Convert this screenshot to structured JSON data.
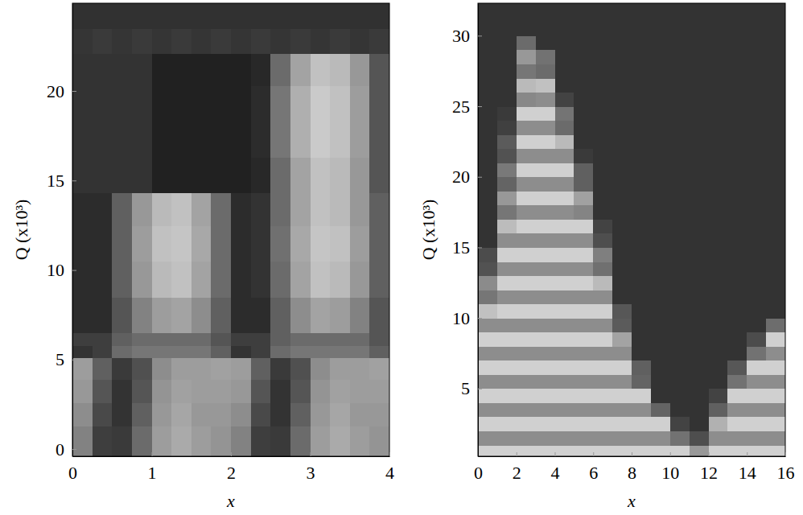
{
  "chart_data": [
    {
      "type": "heatmap",
      "x_label": "x",
      "y_label": "Q (x10³)",
      "xlim": [
        0,
        4
      ],
      "ylim": [
        -0.4,
        24.9
      ],
      "xticks": [
        0,
        1,
        2,
        3,
        4
      ],
      "yticks": [
        0,
        5,
        10,
        15,
        20
      ],
      "zlim": [
        0,
        1
      ],
      "x_edges": [
        0,
        0.25,
        0.5,
        0.75,
        1,
        1.25,
        1.5,
        1.75,
        2,
        2.25,
        2.5,
        2.75,
        3,
        3.25,
        3.5,
        3.75,
        4
      ],
      "y_edges": [
        -0.4,
        1.3,
        2.6,
        3.9,
        5.1,
        5.8,
        6.5,
        8.5,
        10.5,
        12.5,
        14.3,
        16.3,
        18.3,
        20.3,
        22.1,
        23.5,
        24.9
      ],
      "cells": [
        [
          0.5,
          0.2,
          0.18,
          0.4,
          0.62,
          0.68,
          0.62,
          0.58,
          0.5,
          0.2,
          0.18,
          0.4,
          0.62,
          0.68,
          0.62,
          0.58
        ],
        [
          0.55,
          0.25,
          0.15,
          0.35,
          0.6,
          0.66,
          0.6,
          0.6,
          0.55,
          0.25,
          0.15,
          0.35,
          0.6,
          0.66,
          0.6,
          0.6
        ],
        [
          0.6,
          0.3,
          0.15,
          0.3,
          0.58,
          0.64,
          0.62,
          0.62,
          0.6,
          0.3,
          0.15,
          0.3,
          0.58,
          0.64,
          0.62,
          0.62
        ],
        [
          0.62,
          0.35,
          0.18,
          0.28,
          0.55,
          0.62,
          0.62,
          0.64,
          0.62,
          0.35,
          0.18,
          0.28,
          0.55,
          0.62,
          0.62,
          0.64
        ],
        [
          0.15,
          0.2,
          0.4,
          0.45,
          0.45,
          0.45,
          0.45,
          0.35,
          0.15,
          0.2,
          0.4,
          0.45,
          0.45,
          0.45,
          0.45,
          0.35
        ],
        [
          0.2,
          0.2,
          0.35,
          0.4,
          0.4,
          0.4,
          0.4,
          0.3,
          0.2,
          0.2,
          0.35,
          0.4,
          0.4,
          0.4,
          0.4,
          0.3
        ],
        [
          0.12,
          0.12,
          0.3,
          0.5,
          0.62,
          0.65,
          0.55,
          0.35,
          0.12,
          0.12,
          0.35,
          0.55,
          0.65,
          0.62,
          0.5,
          0.3
        ],
        [
          0.12,
          0.12,
          0.35,
          0.6,
          0.75,
          0.78,
          0.65,
          0.4,
          0.12,
          0.15,
          0.4,
          0.65,
          0.78,
          0.75,
          0.6,
          0.35
        ],
        [
          0.12,
          0.12,
          0.35,
          0.62,
          0.78,
          0.8,
          0.67,
          0.4,
          0.12,
          0.15,
          0.42,
          0.67,
          0.8,
          0.78,
          0.62,
          0.35
        ],
        [
          0.12,
          0.12,
          0.35,
          0.6,
          0.75,
          0.78,
          0.65,
          0.4,
          0.12,
          0.15,
          0.4,
          0.65,
          0.78,
          0.75,
          0.6,
          0.35
        ],
        [
          0.15,
          0.15,
          0.15,
          0.15,
          0.07,
          0.07,
          0.07,
          0.07,
          0.07,
          0.1,
          0.4,
          0.65,
          0.78,
          0.75,
          0.6,
          0.3
        ],
        [
          0.15,
          0.15,
          0.15,
          0.15,
          0.07,
          0.07,
          0.07,
          0.07,
          0.07,
          0.12,
          0.45,
          0.7,
          0.82,
          0.78,
          0.62,
          0.3
        ],
        [
          0.15,
          0.15,
          0.15,
          0.15,
          0.07,
          0.07,
          0.07,
          0.07,
          0.07,
          0.12,
          0.45,
          0.7,
          0.82,
          0.78,
          0.62,
          0.3
        ],
        [
          0.15,
          0.15,
          0.15,
          0.15,
          0.07,
          0.07,
          0.07,
          0.07,
          0.07,
          0.1,
          0.4,
          0.65,
          0.78,
          0.75,
          0.6,
          0.3
        ],
        [
          0.16,
          0.18,
          0.16,
          0.18,
          0.16,
          0.18,
          0.16,
          0.18,
          0.16,
          0.18,
          0.16,
          0.18,
          0.16,
          0.18,
          0.16,
          0.18
        ],
        [
          0.14,
          0.14,
          0.14,
          0.14,
          0.14,
          0.14,
          0.14,
          0.14,
          0.14,
          0.14,
          0.14,
          0.14,
          0.14,
          0.14,
          0.14,
          0.14
        ]
      ]
    },
    {
      "type": "heatmap",
      "x_label": "x",
      "y_label": "Q (x10³)",
      "xlim": [
        0,
        16
      ],
      "ylim": [
        0.2,
        32.3
      ],
      "xticks": [
        0,
        2,
        4,
        6,
        8,
        10,
        12,
        14,
        16
      ],
      "yticks": [
        5,
        10,
        15,
        20,
        25,
        30
      ],
      "zlim": [
        0,
        1
      ],
      "x_edges": [
        0,
        1,
        2,
        3,
        4,
        5,
        6,
        7,
        8,
        9,
        10,
        11,
        12,
        13,
        14,
        15,
        16
      ],
      "y_edges": [
        0,
        1,
        2,
        3,
        4,
        5,
        6,
        7,
        8,
        9,
        10,
        11,
        12,
        13,
        14,
        15,
        16,
        17,
        18,
        19,
        20,
        21,
        22,
        23,
        24,
        25,
        26,
        27,
        28,
        29,
        30,
        31,
        32,
        33
      ],
      "cells": [
        [
          0.85,
          0.85,
          0.85,
          0.85,
          0.85,
          0.85,
          0.85,
          0.85,
          0.85,
          0.85,
          0.85,
          0.6,
          0.85,
          0.85,
          0.85,
          0.85
        ],
        [
          0.55,
          0.55,
          0.55,
          0.55,
          0.55,
          0.55,
          0.55,
          0.55,
          0.55,
          0.55,
          0.43,
          0.27,
          0.55,
          0.55,
          0.55,
          0.55
        ],
        [
          0.85,
          0.85,
          0.85,
          0.85,
          0.85,
          0.85,
          0.85,
          0.85,
          0.85,
          0.85,
          0.22,
          0.15,
          0.71,
          0.85,
          0.85,
          0.85
        ],
        [
          0.55,
          0.55,
          0.55,
          0.55,
          0.55,
          0.55,
          0.55,
          0.55,
          0.55,
          0.37,
          0.15,
          0.15,
          0.35,
          0.55,
          0.55,
          0.55
        ],
        [
          0.85,
          0.85,
          0.85,
          0.85,
          0.85,
          0.85,
          0.85,
          0.85,
          0.85,
          0.15,
          0.15,
          0.15,
          0.22,
          0.85,
          0.85,
          0.85
        ],
        [
          0.55,
          0.55,
          0.55,
          0.55,
          0.55,
          0.55,
          0.55,
          0.55,
          0.37,
          0.15,
          0.15,
          0.15,
          0.15,
          0.43,
          0.55,
          0.55
        ],
        [
          0.85,
          0.85,
          0.85,
          0.85,
          0.85,
          0.85,
          0.85,
          0.85,
          0.35,
          0.15,
          0.15,
          0.15,
          0.15,
          0.31,
          0.85,
          0.85
        ],
        [
          0.55,
          0.55,
          0.55,
          0.55,
          0.55,
          0.55,
          0.55,
          0.55,
          0.15,
          0.15,
          0.15,
          0.15,
          0.15,
          0.15,
          0.43,
          0.55
        ],
        [
          0.85,
          0.85,
          0.85,
          0.85,
          0.85,
          0.85,
          0.85,
          0.65,
          0.15,
          0.15,
          0.15,
          0.15,
          0.15,
          0.15,
          0.26,
          0.85
        ],
        [
          0.55,
          0.55,
          0.55,
          0.55,
          0.55,
          0.55,
          0.55,
          0.33,
          0.15,
          0.15,
          0.15,
          0.15,
          0.15,
          0.15,
          0.15,
          0.41
        ],
        [
          0.78,
          0.85,
          0.85,
          0.85,
          0.85,
          0.85,
          0.85,
          0.31,
          0.15,
          0.15,
          0.15,
          0.15,
          0.15,
          0.15,
          0.15,
          0.15
        ],
        [
          0.45,
          0.55,
          0.55,
          0.55,
          0.55,
          0.55,
          0.55,
          0.15,
          0.15,
          0.15,
          0.15,
          0.15,
          0.15,
          0.15,
          0.15,
          0.15
        ],
        [
          0.54,
          0.85,
          0.85,
          0.85,
          0.85,
          0.85,
          0.75,
          0.15,
          0.15,
          0.15,
          0.15,
          0.15,
          0.15,
          0.15,
          0.15,
          0.15
        ],
        [
          0.29,
          0.55,
          0.55,
          0.55,
          0.55,
          0.55,
          0.42,
          0.15,
          0.15,
          0.15,
          0.15,
          0.15,
          0.15,
          0.15,
          0.15,
          0.15
        ],
        [
          0.26,
          0.85,
          0.85,
          0.85,
          0.85,
          0.85,
          0.49,
          0.15,
          0.15,
          0.15,
          0.15,
          0.15,
          0.15,
          0.15,
          0.15,
          0.15
        ],
        [
          0.15,
          0.55,
          0.55,
          0.55,
          0.55,
          0.55,
          0.27,
          0.15,
          0.15,
          0.15,
          0.15,
          0.15,
          0.15,
          0.15,
          0.15,
          0.15
        ],
        [
          0.15,
          0.76,
          0.85,
          0.85,
          0.85,
          0.85,
          0.22,
          0.15,
          0.15,
          0.15,
          0.15,
          0.15,
          0.15,
          0.15,
          0.15,
          0.15
        ],
        [
          0.15,
          0.45,
          0.55,
          0.55,
          0.55,
          0.51,
          0.15,
          0.15,
          0.15,
          0.15,
          0.15,
          0.15,
          0.15,
          0.15,
          0.15,
          0.15
        ],
        [
          0.15,
          0.6,
          0.85,
          0.85,
          0.85,
          0.64,
          0.15,
          0.15,
          0.15,
          0.15,
          0.15,
          0.15,
          0.15,
          0.15,
          0.15,
          0.15
        ],
        [
          0.15,
          0.37,
          0.55,
          0.55,
          0.55,
          0.35,
          0.15,
          0.15,
          0.15,
          0.15,
          0.15,
          0.15,
          0.15,
          0.15,
          0.15,
          0.15
        ],
        [
          0.15,
          0.46,
          0.85,
          0.85,
          0.85,
          0.35,
          0.15,
          0.15,
          0.15,
          0.15,
          0.15,
          0.15,
          0.15,
          0.15,
          0.15,
          0.15
        ],
        [
          0.15,
          0.29,
          0.55,
          0.55,
          0.55,
          0.18,
          0.15,
          0.15,
          0.15,
          0.15,
          0.15,
          0.15,
          0.15,
          0.15,
          0.15,
          0.15
        ],
        [
          0.15,
          0.33,
          0.85,
          0.85,
          0.75,
          0.15,
          0.15,
          0.15,
          0.15,
          0.15,
          0.15,
          0.15,
          0.15,
          0.15,
          0.15,
          0.15
        ],
        [
          0.15,
          0.21,
          0.55,
          0.55,
          0.4,
          0.15,
          0.15,
          0.15,
          0.15,
          0.15,
          0.15,
          0.15,
          0.15,
          0.15,
          0.15,
          0.15
        ],
        [
          0.15,
          0.18,
          0.85,
          0.85,
          0.44,
          0.15,
          0.15,
          0.15,
          0.15,
          0.15,
          0.15,
          0.15,
          0.15,
          0.15,
          0.15,
          0.15
        ],
        [
          0.15,
          0.15,
          0.53,
          0.55,
          0.22,
          0.15,
          0.15,
          0.15,
          0.15,
          0.15,
          0.15,
          0.15,
          0.15,
          0.15,
          0.15,
          0.15
        ],
        [
          0.15,
          0.15,
          0.75,
          0.78,
          0.15,
          0.15,
          0.15,
          0.15,
          0.15,
          0.15,
          0.15,
          0.15,
          0.15,
          0.15,
          0.15,
          0.15
        ],
        [
          0.15,
          0.15,
          0.45,
          0.4,
          0.15,
          0.15,
          0.15,
          0.15,
          0.15,
          0.15,
          0.15,
          0.15,
          0.15,
          0.15,
          0.15,
          0.15
        ],
        [
          0.15,
          0.15,
          0.6,
          0.43,
          0.15,
          0.15,
          0.15,
          0.15,
          0.15,
          0.15,
          0.15,
          0.15,
          0.15,
          0.15,
          0.15,
          0.15
        ],
        [
          0.15,
          0.15,
          0.4,
          0.15,
          0.15,
          0.15,
          0.15,
          0.15,
          0.15,
          0.15,
          0.15,
          0.15,
          0.15,
          0.15,
          0.15,
          0.15
        ],
        [
          0.15,
          0.15,
          0.15,
          0.15,
          0.15,
          0.15,
          0.15,
          0.15,
          0.15,
          0.15,
          0.15,
          0.15,
          0.15,
          0.15,
          0.15,
          0.15
        ],
        [
          0.15,
          0.15,
          0.15,
          0.15,
          0.15,
          0.15,
          0.15,
          0.15,
          0.15,
          0.15,
          0.15,
          0.15,
          0.15,
          0.15,
          0.15,
          0.15
        ],
        [
          0.15,
          0.15,
          0.15,
          0.15,
          0.15,
          0.15,
          0.15,
          0.15,
          0.15,
          0.15,
          0.15,
          0.15,
          0.15,
          0.15,
          0.15,
          0.15
        ]
      ]
    }
  ]
}
